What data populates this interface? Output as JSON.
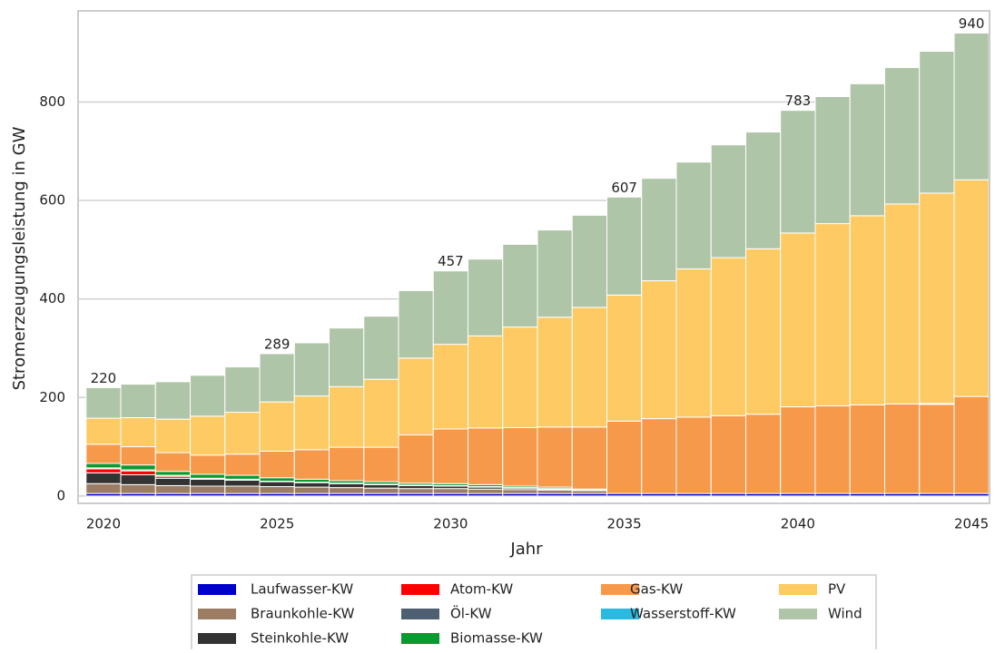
{
  "chart_data": {
    "type": "stacked_bar",
    "x": [
      2020,
      2021,
      2022,
      2023,
      2024,
      2025,
      2026,
      2027,
      2028,
      2029,
      2030,
      2031,
      2032,
      2033,
      2034,
      2035,
      2036,
      2037,
      2038,
      2039,
      2040,
      2041,
      2042,
      2043,
      2044,
      2045
    ],
    "xlabel": "Jahr",
    "ylabel": "Stromerzeugungsleistung in GW",
    "xlim": [
      2019.27,
      2045.52
    ],
    "xticks": [
      2020,
      2025,
      2030,
      2035,
      2040,
      2045
    ],
    "ylim": [
      -15,
      985
    ],
    "yticks": [
      0,
      200,
      400,
      600,
      800
    ],
    "grid": true,
    "series": [
      {
        "name": "Laufwasser-KW",
        "color": "#0000cc",
        "values": [
          5,
          5,
          5,
          5,
          5,
          5,
          5,
          5,
          5,
          5,
          5,
          5,
          5,
          5,
          5,
          5,
          5,
          5,
          5,
          5,
          5,
          5,
          5,
          5,
          5,
          5
        ]
      },
      {
        "name": "Braunkohle-KW",
        "color": "#9c7d63",
        "values": [
          20,
          18,
          16,
          15,
          15,
          14,
          13,
          12,
          11,
          10,
          10,
          9,
          8,
          7,
          6,
          0,
          0,
          0,
          0,
          0,
          0,
          0,
          0,
          0,
          0,
          0
        ]
      },
      {
        "name": "Steinkohle-KW",
        "color": "#333333",
        "values": [
          22,
          20,
          15,
          14,
          12,
          10,
          9,
          8,
          7,
          6,
          5,
          4,
          3,
          2,
          0,
          0,
          0,
          0,
          0,
          0,
          0,
          0,
          0,
          0,
          0,
          0
        ]
      },
      {
        "name": "Atom-KW",
        "color": "#ff0000",
        "values": [
          8,
          8,
          4,
          0,
          0,
          0,
          0,
          0,
          0,
          0,
          0,
          0,
          0,
          0,
          0,
          0,
          0,
          0,
          0,
          0,
          0,
          0,
          0,
          0,
          0,
          0
        ]
      },
      {
        "name": "Öl-KW",
        "color": "#4d5f70",
        "values": [
          2,
          2,
          2,
          2,
          2,
          1,
          1,
          1,
          1,
          1,
          1,
          1,
          1,
          1,
          1,
          0,
          0,
          0,
          0,
          0,
          0,
          0,
          0,
          0,
          0,
          0
        ]
      },
      {
        "name": "Biomasse-KW",
        "color": "#0a9a30",
        "values": [
          9,
          10,
          8,
          8,
          8,
          7,
          6,
          5,
          5,
          4,
          4,
          4,
          3,
          3,
          2,
          0,
          0,
          0,
          0,
          0,
          0,
          0,
          0,
          0,
          0,
          0
        ]
      },
      {
        "name": "Gas-KW",
        "color": "#f7994a",
        "values": [
          39,
          37,
          38,
          39,
          43,
          54,
          60,
          68,
          70,
          98,
          111,
          115,
          119,
          122,
          126,
          147,
          152,
          155,
          158,
          161,
          176,
          178,
          180,
          182,
          181,
          197
        ]
      },
      {
        "name": "Wasserstoff-KW",
        "color": "#2ab9e0",
        "values": [
          0,
          0,
          0,
          0,
          0,
          0,
          0,
          0,
          0,
          0,
          0,
          0,
          0,
          0,
          0,
          0,
          0,
          0,
          0,
          0,
          0,
          0,
          0,
          0,
          2,
          0
        ]
      },
      {
        "name": "PV",
        "color": "#fdca64",
        "values": [
          53,
          59,
          68,
          79,
          85,
          100,
          109,
          123,
          138,
          156,
          172,
          187,
          204,
          223,
          243,
          256,
          280,
          301,
          321,
          336,
          353,
          370,
          384,
          406,
          427,
          440
        ]
      },
      {
        "name": "Wind",
        "color": "#afc5a7",
        "values": [
          62,
          68,
          76,
          83,
          92,
          98,
          108,
          119,
          128,
          137,
          149,
          156,
          168,
          177,
          187,
          199,
          208,
          217,
          229,
          237,
          249,
          258,
          268,
          277,
          288,
          298
        ]
      }
    ],
    "annotations": [
      {
        "x": 2020,
        "value": 220
      },
      {
        "x": 2025,
        "value": 289
      },
      {
        "x": 2030,
        "value": 457
      },
      {
        "x": 2035,
        "value": 607
      },
      {
        "x": 2040,
        "value": 783
      },
      {
        "x": 2045,
        "value": 940
      }
    ]
  }
}
